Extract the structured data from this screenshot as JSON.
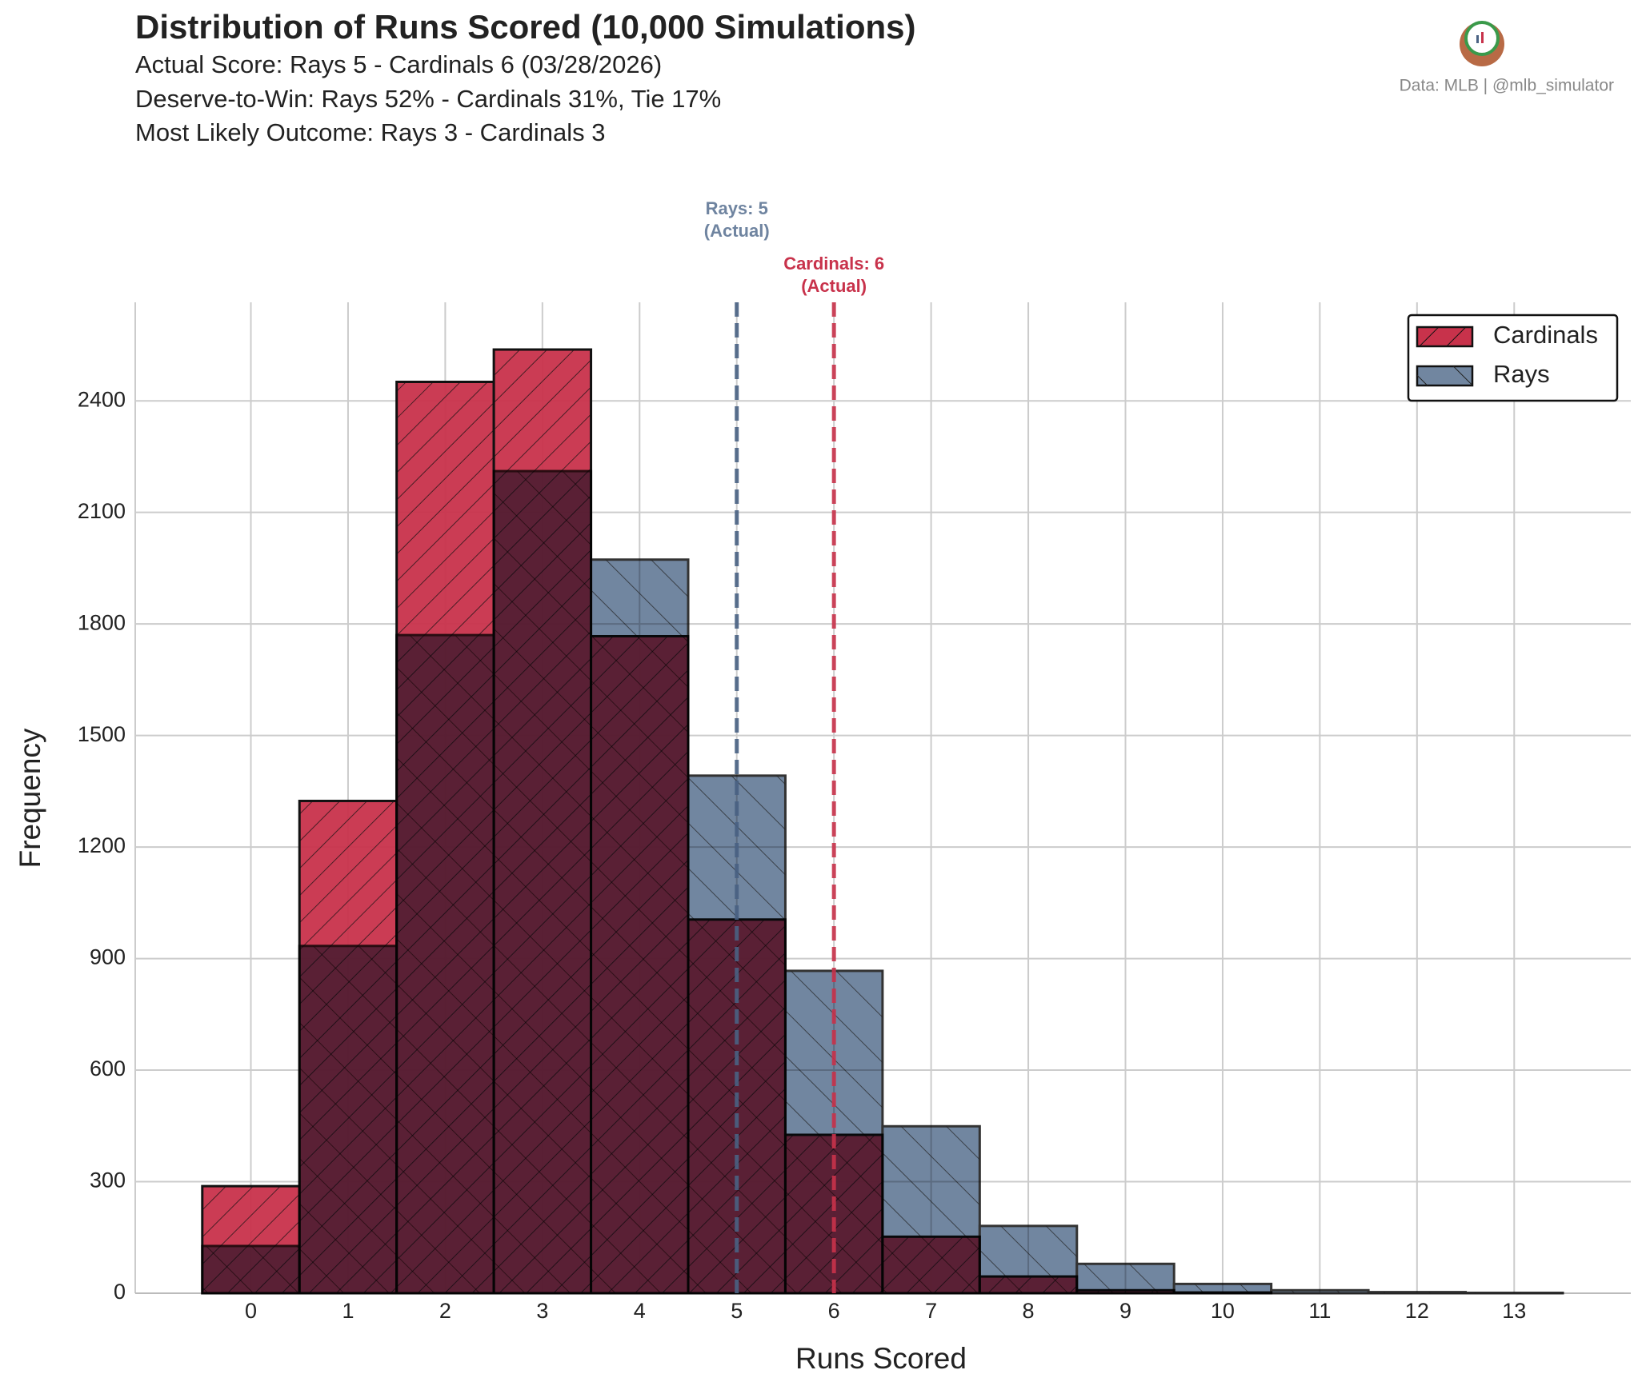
{
  "chart_data": {
    "type": "histogram",
    "title": "Distribution of Runs Scored (10,000 Simulations)",
    "subtitle_lines": [
      "Actual Score: Rays 5 - Cardinals 6  (03/28/2026)",
      "Deserve-to-Win: Rays 52% - Cardinals 31%, Tie 17%",
      "Most Likely Outcome: Rays 3 - Cardinals 3"
    ],
    "credit": "Data: MLB  |  @mlb_simulator",
    "x_label": "Runs Scored",
    "y_label": "Frequency",
    "bins": [
      -0.5,
      0.5,
      1.5,
      2.5,
      3.5,
      4.5,
      5.5,
      6.5,
      7.5,
      8.5,
      9.5,
      10.5,
      11.5,
      12.5,
      13.5
    ],
    "series": [
      {
        "name": "Cardinals",
        "color": "#c8324b",
        "hatch": "/",
        "values": [
          288,
          1324,
          2451,
          2538,
          1767,
          1005,
          426,
          152,
          45,
          8,
          2,
          0,
          0,
          0
        ]
      },
      {
        "name": "Rays",
        "color": "#7186a0",
        "hatch": "\\",
        "values": [
          127,
          934,
          1770,
          2211,
          1973,
          1392,
          867,
          449,
          181,
          79,
          25,
          8,
          3,
          1
        ]
      }
    ],
    "reference_lines": [
      {
        "x": 5,
        "color": "#4a6283",
        "text_color": "#6f84a0",
        "label_lines": [
          "Rays: 5",
          "(Actual)"
        ]
      },
      {
        "x": 6,
        "color": "#c8324b",
        "text_color": "#c8324b",
        "label_lines": [
          "Cardinals: 6",
          "(Actual)"
        ]
      }
    ],
    "xlim": [
      -1.19,
      14.2
    ],
    "ylim": [
      0,
      2665
    ],
    "xticks": [
      0,
      1,
      2,
      3,
      4,
      5,
      6,
      7,
      8,
      9,
      10,
      11,
      12,
      13
    ],
    "yticks": [
      0,
      300,
      600,
      900,
      1200,
      1500,
      1800,
      2100,
      2400
    ],
    "grid": true,
    "legend": "upper-right"
  }
}
